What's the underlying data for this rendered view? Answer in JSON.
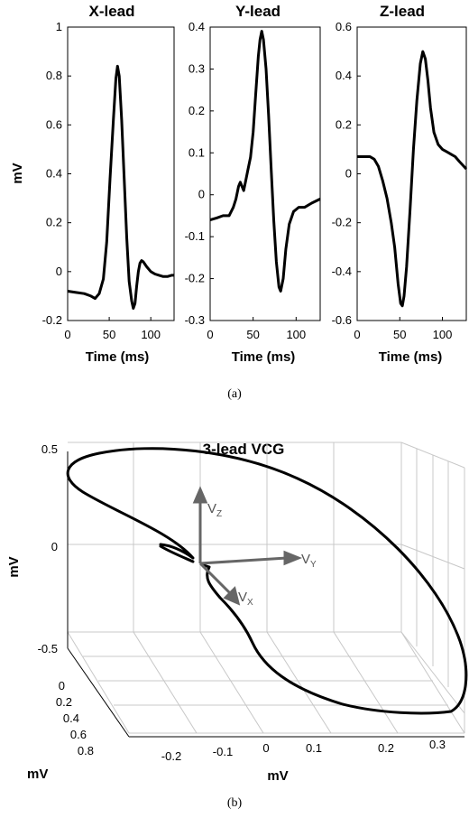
{
  "chart_data": [
    {
      "type": "line",
      "title": "X-lead",
      "xlabel": "Time (ms)",
      "ylabel": "mV",
      "xlim": [
        0,
        128
      ],
      "ylim": [
        -0.2,
        1
      ],
      "xticks": [
        "0",
        "50",
        "100"
      ],
      "yticks": [
        "-0.2",
        "0",
        "0.2",
        "0.4",
        "0.6",
        "0.8",
        "1"
      ],
      "x": [
        0,
        10,
        20,
        28,
        33,
        38,
        43,
        47,
        51,
        55,
        58,
        60,
        62,
        65,
        68,
        71,
        74,
        77,
        79,
        81,
        83,
        85,
        87,
        89,
        91,
        95,
        100,
        105,
        110,
        115,
        120,
        125,
        128
      ],
      "y": [
        -0.08,
        -0.085,
        -0.09,
        -0.1,
        -0.11,
        -0.09,
        -0.03,
        0.12,
        0.38,
        0.62,
        0.79,
        0.84,
        0.8,
        0.62,
        0.38,
        0.14,
        -0.04,
        -0.12,
        -0.15,
        -0.13,
        -0.06,
        0.0,
        0.035,
        0.045,
        0.04,
        0.02,
        0.0,
        -0.01,
        -0.015,
        -0.02,
        -0.02,
        -0.015,
        -0.015
      ]
    },
    {
      "type": "line",
      "title": "Y-lead",
      "xlabel": "Time (ms)",
      "ylabel": "",
      "xlim": [
        0,
        128
      ],
      "ylim": [
        -0.3,
        0.4
      ],
      "xticks": [
        "0",
        "50",
        "100"
      ],
      "yticks": [
        "-0.3",
        "-0.2",
        "-0.1",
        "0",
        "0.1",
        "0.2",
        "0.3",
        "0.4"
      ],
      "x": [
        0,
        8,
        15,
        22,
        27,
        30,
        33,
        35,
        37,
        39,
        41,
        44,
        47,
        50,
        53,
        56,
        58,
        60,
        62,
        65,
        68,
        71,
        74,
        77,
        80,
        82,
        85,
        88,
        92,
        97,
        103,
        110,
        118,
        128
      ],
      "y": [
        -0.06,
        -0.055,
        -0.05,
        -0.05,
        -0.03,
        -0.01,
        0.02,
        0.03,
        0.02,
        0.01,
        0.03,
        0.06,
        0.09,
        0.15,
        0.24,
        0.33,
        0.37,
        0.39,
        0.37,
        0.3,
        0.19,
        0.06,
        -0.06,
        -0.16,
        -0.22,
        -0.23,
        -0.2,
        -0.13,
        -0.07,
        -0.04,
        -0.03,
        -0.03,
        -0.02,
        -0.01
      ]
    },
    {
      "type": "line",
      "title": "Z-lead",
      "xlabel": "Time (ms)",
      "ylabel": "",
      "xlim": [
        0,
        128
      ],
      "ylim": [
        -0.6,
        0.6
      ],
      "xticks": [
        "0",
        "50",
        "100"
      ],
      "yticks": [
        "-0.6",
        "-0.4",
        "-0.2",
        "0",
        "0.2",
        "0.4",
        "0.6"
      ],
      "x": [
        0,
        8,
        15,
        20,
        25,
        30,
        35,
        40,
        44,
        48,
        51,
        53,
        55,
        58,
        62,
        66,
        70,
        74,
        77,
        80,
        83,
        86,
        90,
        95,
        100,
        105,
        110,
        115,
        120,
        128
      ],
      "y": [
        0.07,
        0.07,
        0.07,
        0.06,
        0.03,
        -0.03,
        -0.1,
        -0.2,
        -0.3,
        -0.45,
        -0.53,
        -0.54,
        -0.5,
        -0.38,
        -0.15,
        0.1,
        0.3,
        0.45,
        0.5,
        0.47,
        0.38,
        0.27,
        0.17,
        0.12,
        0.1,
        0.09,
        0.08,
        0.07,
        0.05,
        0.02
      ]
    },
    {
      "type": "line",
      "title": "3-lead VCG",
      "xlabel": "mV",
      "ylabel": "mV",
      "zlabel": "mV",
      "y_axis_ticks": [
        "-0.2",
        "-0.1",
        "0",
        "0.1",
        "0.2",
        "0.3"
      ],
      "x_axis_ticks": [
        "0",
        "0.2",
        "0.4",
        "0.6",
        "0.8"
      ],
      "z_axis_ticks": [
        "0.5",
        "0",
        "-0.5"
      ],
      "vectors": [
        {
          "name": "V",
          "sub": "Z"
        },
        {
          "name": "V",
          "sub": "Y"
        },
        {
          "name": "V",
          "sub": "X"
        }
      ]
    }
  ],
  "captions": {
    "a": "(a)",
    "b": "(b)"
  }
}
